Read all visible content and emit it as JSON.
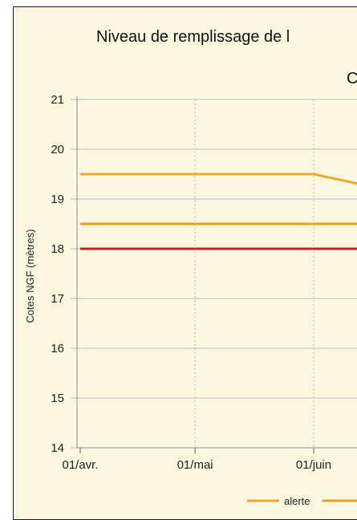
{
  "chart_data": {
    "type": "line",
    "title": "Niveau de remplissage de l",
    "subtitle": "C",
    "ylabel": "Cotes NGF (mètres)",
    "xlabel": "",
    "ylim": [
      14,
      21
    ],
    "yticks": [
      14,
      15,
      16,
      17,
      18,
      19,
      20,
      21
    ],
    "x_ticks": [
      "01/avr.",
      "01/mai",
      "01/juin"
    ],
    "x_tick_dates": [
      "04-01",
      "05-01",
      "06-01"
    ],
    "x_range": [
      "04-01",
      "06-13"
    ],
    "grid": {
      "y": true,
      "x": true,
      "x_style": "dotted"
    },
    "legend_position": "bottom",
    "series": [
      {
        "name": "alerte",
        "color": "#f0a830",
        "points": [
          {
            "x": "04-01",
            "y": 19.5
          },
          {
            "x": "06-01",
            "y": 19.5
          },
          {
            "x": "06-13",
            "y": 19.3
          }
        ]
      },
      {
        "color": "#e8a020",
        "points": [
          {
            "x": "04-01",
            "y": 18.5
          },
          {
            "x": "06-13",
            "y": 18.5
          }
        ]
      },
      {
        "color": "#cc1f1f",
        "points": [
          {
            "x": "04-01",
            "y": 18.0
          },
          {
            "x": "06-13",
            "y": 18.0
          }
        ]
      }
    ]
  }
}
